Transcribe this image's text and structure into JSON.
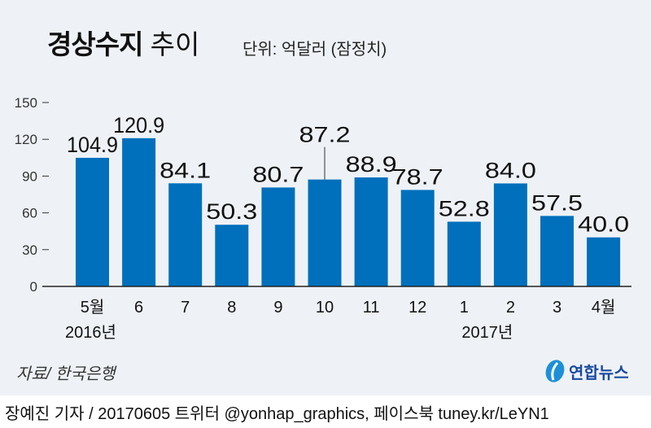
{
  "header": {
    "title_bold": "경상수지",
    "title_light": "추이",
    "unit": "단위: 억달러 (잠정치)"
  },
  "chart_data": {
    "type": "bar",
    "categories": [
      "5월",
      "6",
      "7",
      "8",
      "9",
      "10",
      "11",
      "12",
      "1",
      "2",
      "3",
      "4월"
    ],
    "values": [
      104.9,
      120.9,
      84.1,
      50.3,
      80.7,
      87.2,
      88.9,
      78.7,
      52.8,
      84.0,
      57.5,
      40.0
    ],
    "value_labels": [
      "104.9",
      "120.9",
      "84.1",
      "50.3",
      "80.7",
      "87.2",
      "88.9",
      "78.7",
      "52.8",
      "84.0",
      "57.5",
      "40.0"
    ],
    "year_labels": [
      "2016년",
      "2017년"
    ],
    "yticks": [
      "0",
      "30",
      "60",
      "90",
      "120",
      "150"
    ],
    "ylim": [
      0,
      150
    ],
    "bar_color": "#0070bc",
    "grid": false
  },
  "source": "자료/ 한국은행",
  "logo": {
    "text": "연합뉴스"
  },
  "footer": "장예진 기자 / 20170605 트위터 @yonhap_graphics, 페이스북 tuney.kr/LeYN1"
}
